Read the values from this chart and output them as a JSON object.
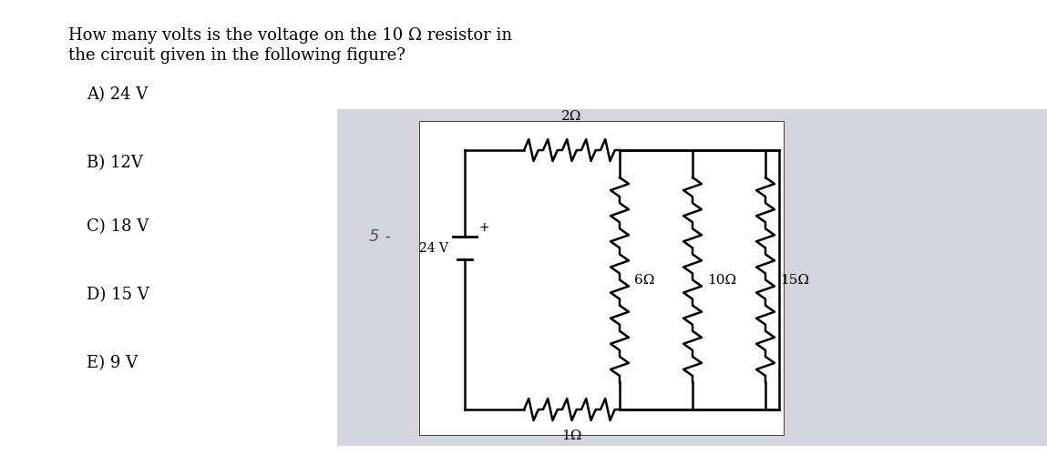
{
  "question_text_line1": "How many volts is the voltage on the 10 Ω resistor in",
  "question_text_line2": "the circuit given in the following figure?",
  "options": [
    "A) 24 V",
    "B) 12V",
    "C) 18 V",
    "D) 15 V",
    "E) 9 V"
  ],
  "left_panel_color": "#e0e0e8",
  "right_panel_color": "#e8e8ee",
  "circuit_box_color": "#ffffff",
  "text_color": "#000000",
  "page_label_color": "#777777",
  "font_size_question": 13,
  "font_size_options": 13,
  "font_size_circuit": 11,
  "resistor_labels": [
    "2Ω",
    "1Ω",
    "6Ω",
    "10Ω",
    "15Ω"
  ],
  "battery_label": "24 V",
  "page_label": "5 -",
  "outer_bg": "#d8d8e0",
  "inner_bg": "#e8e8f0",
  "circuit_inner_bg": "#f5f5f5"
}
